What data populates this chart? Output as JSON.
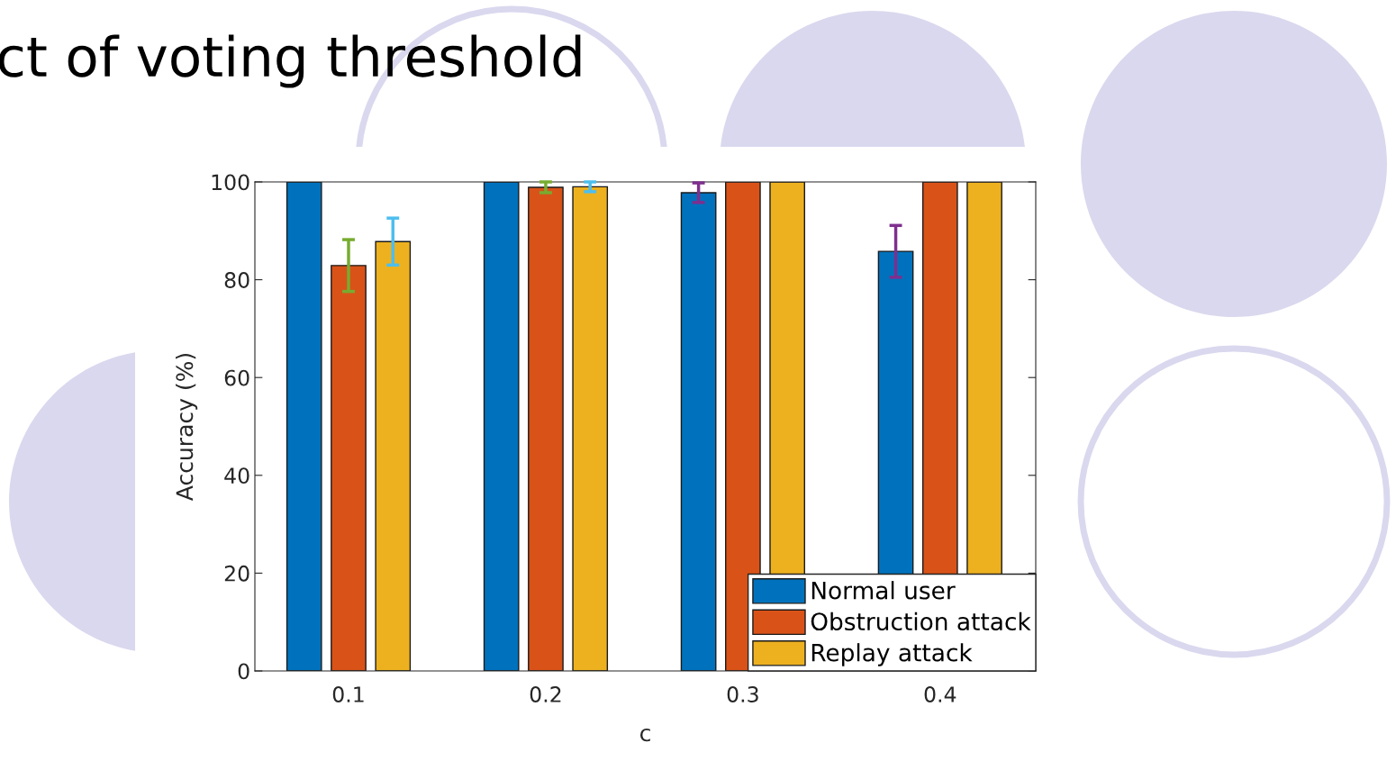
{
  "chart_data": {
    "type": "bar",
    "title": "ct of voting threshold",
    "xlabel": "c",
    "ylabel": "Accuracy (%)",
    "categories": [
      "0.1",
      "0.2",
      "0.3",
      "0.4"
    ],
    "series": [
      {
        "name": "Normal user",
        "color": "#0072bd",
        "values": [
          100,
          100,
          97.8,
          85.8
        ],
        "errors": [
          null,
          null,
          2.0,
          5.3
        ]
      },
      {
        "name": "Obstruction attack",
        "color": "#d95319",
        "values": [
          82.9,
          98.9,
          100,
          100
        ],
        "errors": [
          5.3,
          1.1,
          null,
          null
        ]
      },
      {
        "name": "Replay attack",
        "color": "#edb120",
        "values": [
          87.8,
          99,
          100,
          100
        ],
        "errors": [
          4.8,
          1.0,
          null,
          null
        ]
      }
    ],
    "ylim": [
      0,
      100
    ],
    "yticks": [
      0,
      20,
      40,
      60,
      80,
      100
    ],
    "grid": false,
    "legend": "bottom right"
  }
}
